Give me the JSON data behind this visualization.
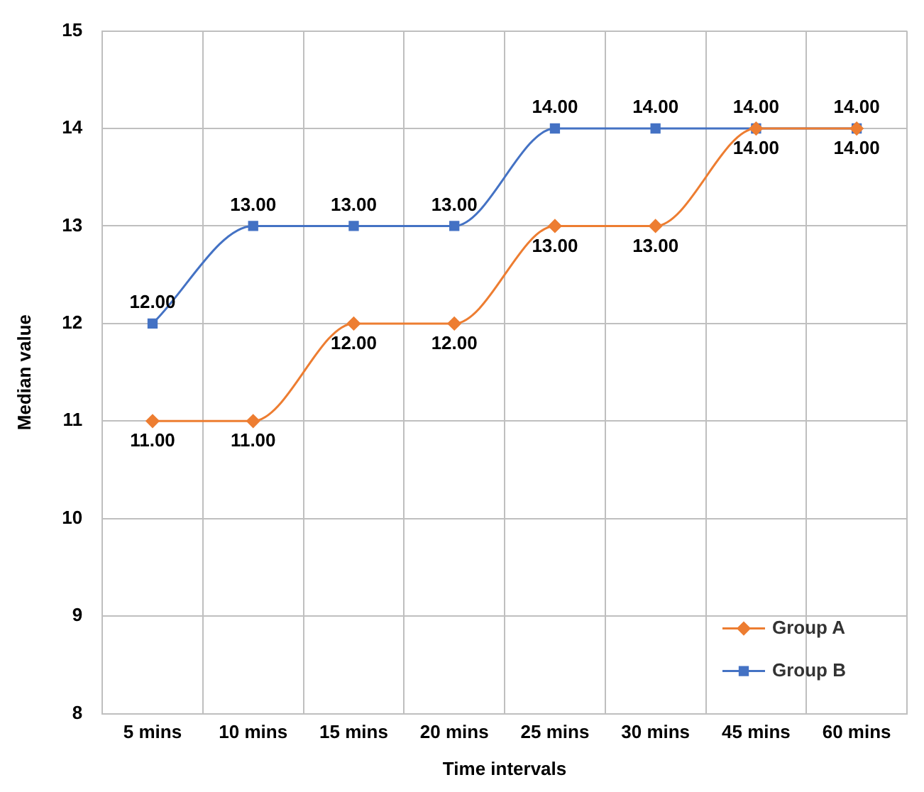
{
  "chart_data": {
    "type": "line",
    "xlabel": "Time intervals",
    "ylabel": "Median value",
    "categories": [
      "5 mins",
      "10 mins",
      "15 mins",
      "20 mins",
      "25 mins",
      "30 mins",
      "45 mins",
      "60 mins"
    ],
    "series": [
      {
        "name": "Group A",
        "color": "#ed7d31",
        "marker": "diamond",
        "values": [
          11,
          11,
          12,
          12,
          13,
          13,
          14,
          14
        ],
        "value_labels": [
          "11.00",
          "11.00",
          "12.00",
          "12.00",
          "13.00",
          "13.00",
          "14.00",
          "14.00"
        ]
      },
      {
        "name": "Group B",
        "color": "#4472c4",
        "marker": "square",
        "values": [
          12,
          13,
          13,
          13,
          14,
          14,
          14,
          14
        ],
        "value_labels": [
          "12.00",
          "13.00",
          "13.00",
          "13.00",
          "14.00",
          "14.00",
          "14.00",
          "14.00"
        ]
      }
    ],
    "ylim": [
      8,
      15
    ],
    "yticks": [
      8,
      9,
      10,
      11,
      12,
      13,
      14,
      15
    ],
    "grid": true,
    "legend": "bottom right"
  }
}
